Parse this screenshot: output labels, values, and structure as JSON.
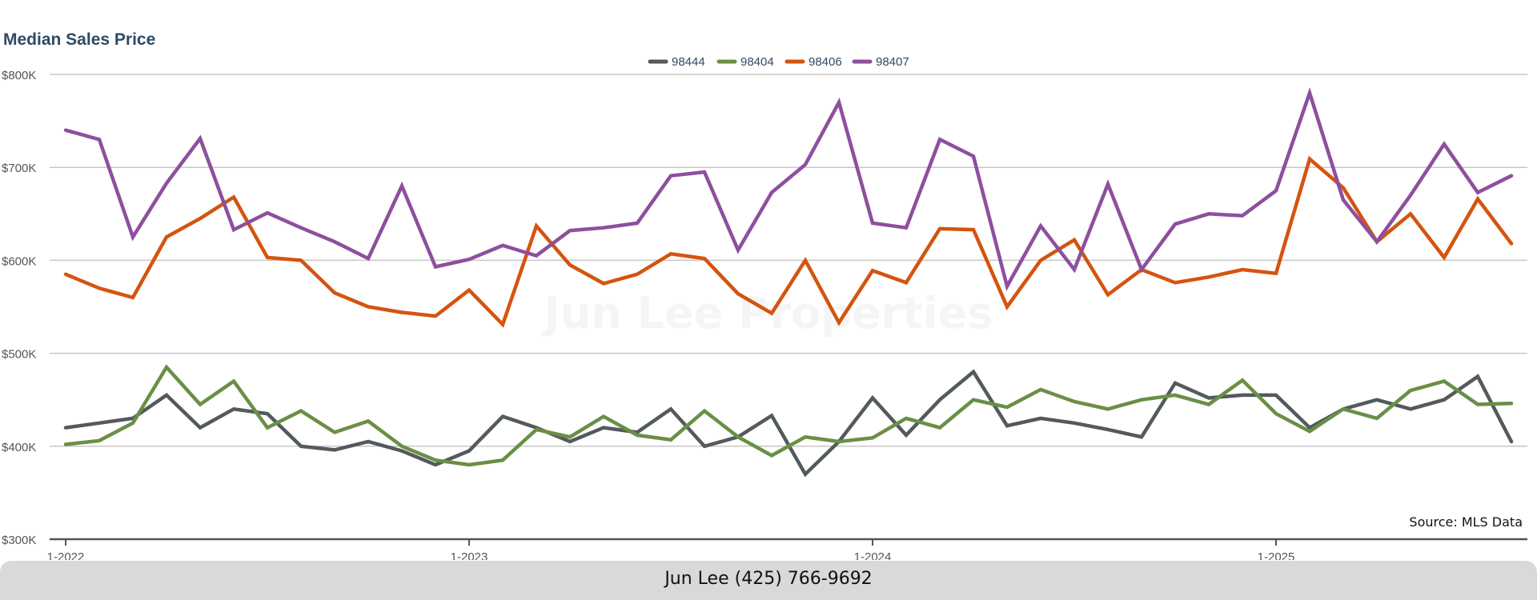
{
  "chart_data": {
    "type": "line",
    "title": "Median Sales Price",
    "ylim": [
      300000,
      800000
    ],
    "y_ticks": [
      300000,
      400000,
      500000,
      600000,
      700000,
      800000
    ],
    "y_tick_labels": [
      "$300K",
      "$400K",
      "$500K",
      "$600K",
      "$700K",
      "$800K"
    ],
    "x_tick_labels": [
      "1-2022",
      "1-2023",
      "1-2024",
      "1-2025"
    ],
    "x_tick_months": [
      0,
      12,
      24,
      36
    ],
    "months_count": 44,
    "grid": true,
    "legend_position": "top-center",
    "series": [
      {
        "name": "98444",
        "color": "#535a5d",
        "values": [
          420000,
          425000,
          430000,
          455000,
          420000,
          440000,
          435000,
          400000,
          396000,
          405000,
          395000,
          380000,
          395000,
          432000,
          420000,
          405000,
          420000,
          415000,
          440000,
          400000,
          410000,
          433000,
          370000,
          405000,
          452000,
          412000,
          450000,
          480000,
          422000,
          430000,
          425000,
          418000,
          410000,
          468000,
          452000,
          455000,
          455000,
          420000,
          440000,
          450000,
          440000,
          450000,
          475000,
          405000
        ]
      },
      {
        "name": "98404",
        "color": "#6a8f45",
        "values": [
          402000,
          406000,
          425000,
          485000,
          445000,
          470000,
          420000,
          438000,
          415000,
          427000,
          400000,
          385000,
          380000,
          385000,
          418000,
          410000,
          432000,
          412000,
          407000,
          438000,
          410000,
          390000,
          410000,
          405000,
          409000,
          430000,
          420000,
          450000,
          442000,
          461000,
          448000,
          440000,
          450000,
          455000,
          445000,
          471000,
          435000,
          416000,
          440000,
          430000,
          460000,
          470000,
          445000,
          446000
        ]
      },
      {
        "name": "98406",
        "color": "#d4540f",
        "values": [
          585000,
          570000,
          560000,
          625000,
          645000,
          668000,
          603000,
          600000,
          565000,
          550000,
          544000,
          540000,
          568000,
          531000,
          637000,
          595000,
          575000,
          585000,
          607000,
          602000,
          564000,
          543000,
          600000,
          533000,
          589000,
          576000,
          634000,
          633000,
          550000,
          600000,
          622000,
          563000,
          590000,
          576000,
          582000,
          590000,
          586000,
          709000,
          678000,
          620000,
          650000,
          603000,
          666000,
          618000
        ]
      },
      {
        "name": "98407",
        "color": "#8e4f9e",
        "values": [
          740000,
          730000,
          625000,
          683000,
          731000,
          633000,
          651000,
          635000,
          620000,
          602000,
          680000,
          593000,
          601000,
          616000,
          605000,
          632000,
          635000,
          640000,
          691000,
          695000,
          611000,
          673000,
          703000,
          770000,
          640000,
          635000,
          730000,
          712000,
          572000,
          637000,
          590000,
          682000,
          590000,
          639000,
          650000,
          648000,
          675000,
          780000,
          665000,
          620000,
          670000,
          725000,
          673000,
          691000
        ]
      }
    ]
  },
  "source_note": "Source: MLS Data",
  "footer": {
    "text": "Jun Lee (425) 766-9692"
  },
  "watermark": "Jun Lee Properties"
}
